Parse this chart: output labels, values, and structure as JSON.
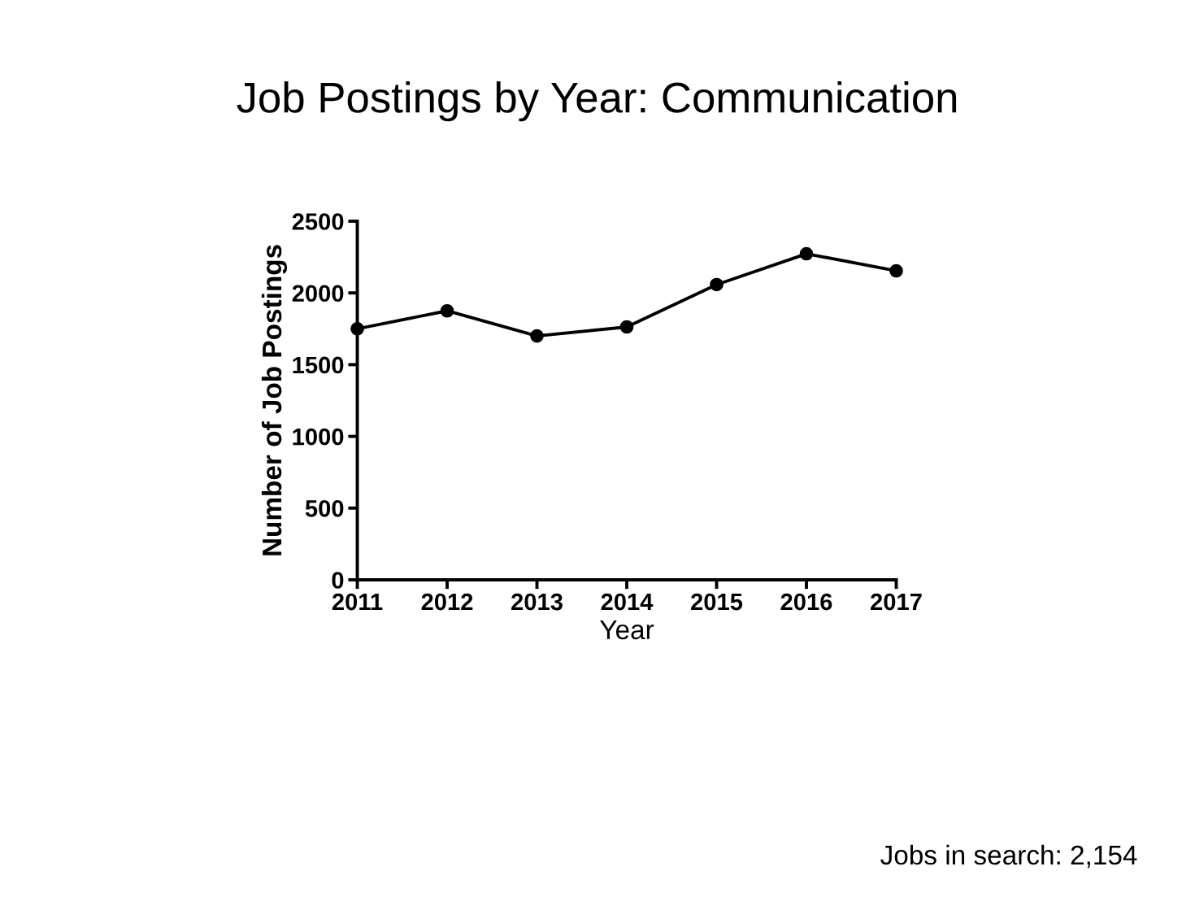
{
  "chart_data": {
    "type": "line",
    "title": "Job Postings by Year: Communication",
    "xlabel": "Year",
    "ylabel": "Number of Job Postings",
    "x": [
      2011,
      2012,
      2013,
      2014,
      2015,
      2016,
      2017
    ],
    "series": [
      {
        "color": "#000000",
        "values": [
          1750,
          1875,
          1700,
          1763,
          2058,
          2273,
          2154
        ]
      }
    ],
    "xlim": [
      2011,
      2017
    ],
    "xticks": [
      2011,
      2012,
      2013,
      2014,
      2015,
      2016,
      2017
    ],
    "ylim": [
      0,
      2500
    ],
    "yticks": [
      0,
      500,
      1000,
      1500,
      2000,
      2500
    ],
    "marker": "circle",
    "line_style": "solid",
    "grid": false,
    "legend": false,
    "annotations": [
      "Jobs in search: 2,154"
    ]
  }
}
